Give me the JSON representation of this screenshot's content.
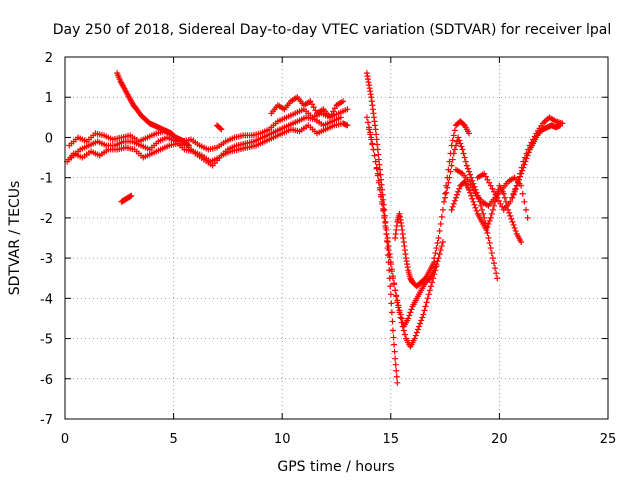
{
  "chart_data": {
    "type": "scatter",
    "title": "Day 250 of 2018, Sidereal Day-to-day VTEC variation (SDTVAR) for receiver lpal",
    "xlabel": "GPS time / hours",
    "ylabel": "SDTVAR / TECUs",
    "xlim": [
      0,
      25
    ],
    "ylim": [
      -7,
      2
    ],
    "xticks": [
      "0",
      "5",
      "10",
      "15",
      "20",
      "25"
    ],
    "yticks": [
      "2",
      "1",
      "0",
      "-1",
      "-2",
      "-3",
      "-4",
      "-5",
      "-6",
      "-7"
    ],
    "grid": true,
    "marker": "+",
    "color": "#ff0000",
    "series": [
      {
        "x": [
          0.1,
          0.4,
          0.8,
          1.2,
          1.6,
          2.0,
          2.4,
          2.8,
          3.2,
          3.6,
          4.0,
          4.4,
          4.8,
          5.2,
          5.6,
          6.0,
          6.4,
          6.8,
          7.2,
          7.6,
          8.0,
          8.4,
          8.8,
          9.2,
          9.6,
          10.0,
          10.4,
          10.8,
          11.2,
          11.6,
          12.0,
          12.4,
          12.8,
          13.0
        ],
        "y": [
          -0.6,
          -0.4,
          -0.5,
          -0.35,
          -0.45,
          -0.3,
          -0.3,
          -0.25,
          -0.3,
          -0.5,
          -0.4,
          -0.3,
          -0.2,
          -0.15,
          -0.2,
          -0.4,
          -0.55,
          -0.7,
          -0.45,
          -0.35,
          -0.3,
          -0.25,
          -0.2,
          -0.1,
          0.0,
          0.1,
          0.2,
          0.15,
          0.3,
          0.1,
          0.2,
          0.3,
          0.35,
          0.3
        ]
      },
      {
        "x": [
          0.2,
          0.6,
          1.0,
          1.4,
          1.8,
          2.2,
          2.6,
          3.0,
          3.4,
          3.8,
          4.2,
          4.6,
          5.0,
          5.4,
          5.8,
          6.2,
          6.6,
          7.0,
          7.4,
          7.8,
          8.2,
          8.6,
          9.0,
          9.4,
          9.8,
          10.2,
          10.6,
          11.0,
          11.4,
          11.8,
          12.2,
          12.6,
          13.0
        ],
        "y": [
          -0.2,
          0.0,
          -0.1,
          0.1,
          0.05,
          -0.05,
          0.0,
          0.05,
          -0.1,
          0.0,
          0.1,
          0.15,
          0.0,
          -0.1,
          -0.05,
          -0.2,
          -0.3,
          -0.25,
          -0.1,
          0.0,
          0.05,
          0.05,
          0.1,
          0.2,
          0.4,
          0.5,
          0.6,
          0.7,
          0.5,
          0.6,
          0.5,
          0.6,
          0.7
        ]
      },
      {
        "x": [
          0.3,
          0.7,
          1.1,
          1.5,
          1.9,
          2.3,
          2.7,
          3.1,
          3.5,
          3.9,
          4.3,
          4.7,
          5.1,
          5.5,
          5.9,
          6.3,
          6.7,
          7.1,
          7.5,
          7.9,
          8.3,
          8.7,
          9.1,
          9.5,
          9.9,
          10.3,
          10.7,
          11.1,
          11.5,
          11.9,
          12.3,
          12.7
        ],
        "y": [
          -0.5,
          -0.3,
          -0.2,
          -0.1,
          -0.2,
          -0.2,
          -0.1,
          -0.1,
          -0.2,
          -0.3,
          -0.1,
          0.0,
          -0.1,
          -0.3,
          -0.35,
          -0.45,
          -0.6,
          -0.5,
          -0.3,
          -0.2,
          -0.15,
          -0.1,
          0.0,
          0.1,
          0.2,
          0.3,
          0.4,
          0.5,
          0.45,
          0.3,
          0.4,
          0.5
        ]
      },
      {
        "x": [
          2.4,
          2.55,
          2.7,
          2.85,
          3.0,
          3.15,
          3.3,
          3.5,
          3.7,
          3.9,
          4.1,
          4.3,
          4.5,
          4.7,
          4.9,
          5.1,
          5.3,
          5.5,
          5.7
        ],
        "y": [
          1.6,
          1.4,
          1.25,
          1.1,
          0.95,
          0.8,
          0.7,
          0.55,
          0.45,
          0.35,
          0.3,
          0.25,
          0.2,
          0.15,
          0.1,
          0.0,
          -0.05,
          -0.1,
          -0.2
        ]
      },
      {
        "x": [
          2.6,
          2.75,
          2.9,
          3.05
        ],
        "y": [
          -1.6,
          -1.55,
          -1.5,
          -1.45
        ]
      },
      {
        "x": [
          7.0,
          7.2
        ],
        "y": [
          0.3,
          0.2
        ]
      },
      {
        "x": [
          9.5,
          9.8,
          10.1,
          10.4,
          10.7,
          11.0,
          11.3,
          11.6,
          11.9,
          12.2,
          12.5,
          12.8
        ],
        "y": [
          0.6,
          0.8,
          0.7,
          0.9,
          1.0,
          0.8,
          0.9,
          0.6,
          0.7,
          0.5,
          0.8,
          0.9
        ]
      },
      {
        "x": [
          13.9,
          14.0,
          14.1,
          14.2,
          14.3,
          14.4,
          14.5,
          14.6,
          14.7,
          14.8,
          14.9,
          15.0,
          15.1,
          15.2,
          15.3
        ],
        "y": [
          1.6,
          1.3,
          1.0,
          0.6,
          0.2,
          -0.3,
          -0.8,
          -1.3,
          -1.8,
          -2.4,
          -3.1,
          -3.9,
          -4.8,
          -5.5,
          -6.1
        ]
      },
      {
        "x": [
          13.9,
          14.1,
          14.3,
          14.5,
          14.7,
          14.9,
          15.1,
          15.3,
          15.5,
          15.7,
          15.9,
          16.1,
          16.3,
          16.5,
          16.7,
          16.9,
          17.1
        ],
        "y": [
          0.5,
          0.0,
          -0.6,
          -1.3,
          -2.0,
          -2.8,
          -3.5,
          -4.1,
          -4.6,
          -5.0,
          -5.2,
          -5.0,
          -4.7,
          -4.4,
          -4.0,
          -3.6,
          -3.2
        ]
      },
      {
        "x": [
          14.0,
          14.2,
          14.4,
          14.6,
          14.8,
          15.0,
          15.2,
          15.4,
          15.6,
          15.8,
          16.0,
          16.2,
          16.4,
          16.6,
          16.8,
          17.0,
          17.2,
          17.4
        ],
        "y": [
          0.2,
          -0.3,
          -0.9,
          -1.6,
          -2.3,
          -3.1,
          -3.8,
          -4.3,
          -4.7,
          -4.5,
          -4.2,
          -4.0,
          -3.8,
          -3.6,
          -3.5,
          -3.3,
          -3.0,
          -2.6
        ]
      },
      {
        "x": [
          15.2,
          15.3,
          15.4,
          15.5,
          15.6,
          15.7,
          15.8,
          15.9,
          16.0,
          16.2,
          16.4,
          16.6,
          16.8,
          17.0
        ],
        "y": [
          -2.5,
          -2.1,
          -1.9,
          -2.2,
          -2.6,
          -3.0,
          -3.3,
          -3.5,
          -3.6,
          -3.7,
          -3.6,
          -3.5,
          -3.3,
          -3.1
        ]
      },
      {
        "x": [
          17.0,
          17.2,
          17.4,
          17.6,
          17.8,
          18.0,
          18.2,
          18.4,
          18.6
        ],
        "y": [
          -3.0,
          -2.5,
          -1.8,
          -1.0,
          -0.2,
          0.3,
          0.4,
          0.3,
          0.1
        ]
      },
      {
        "x": [
          17.5,
          17.7,
          17.9,
          18.1,
          18.3,
          18.5,
          18.7,
          18.9,
          19.1,
          19.3,
          19.5,
          19.7,
          19.9
        ],
        "y": [
          -1.5,
          -1.0,
          -0.4,
          0.0,
          -0.3,
          -0.7,
          -1.0,
          -1.3,
          -1.6,
          -2.0,
          -2.5,
          -3.0,
          -3.5
        ]
      },
      {
        "x": [
          17.8,
          18.0,
          18.2,
          18.4,
          18.6,
          18.8,
          19.0,
          19.2,
          19.4,
          19.6,
          19.8,
          20.0,
          20.2,
          20.4,
          20.6,
          20.8,
          21.0
        ],
        "y": [
          -1.8,
          -1.5,
          -1.2,
          -1.1,
          -1.3,
          -1.6,
          -1.9,
          -2.1,
          -2.3,
          -2.0,
          -1.6,
          -1.2,
          -1.4,
          -1.8,
          -2.1,
          -2.4,
          -2.6
        ]
      },
      {
        "x": [
          18.0,
          18.3,
          18.6,
          18.9,
          19.2,
          19.5,
          19.8,
          20.1,
          20.4,
          20.7,
          21.0,
          21.3
        ],
        "y": [
          -0.8,
          -0.9,
          -1.1,
          -1.4,
          -1.6,
          -1.7,
          -1.5,
          -1.3,
          -1.1,
          -1.0,
          -1.2,
          -2.0
        ]
      },
      {
        "x": [
          19.0,
          19.3,
          19.6,
          19.9,
          20.2,
          20.5,
          20.8,
          21.1,
          21.4,
          21.7,
          22.0,
          22.3,
          22.6,
          22.9
        ],
        "y": [
          -1.0,
          -0.9,
          -1.2,
          -1.5,
          -1.8,
          -1.6,
          -1.2,
          -0.6,
          -0.2,
          0.1,
          0.35,
          0.5,
          0.4,
          0.35
        ]
      },
      {
        "x": [
          20.6,
          20.8,
          21.0,
          21.2,
          21.4,
          21.6,
          21.8,
          22.0,
          22.2,
          22.4,
          22.6,
          22.8
        ],
        "y": [
          -1.5,
          -1.2,
          -0.9,
          -0.6,
          -0.3,
          -0.1,
          0.1,
          0.2,
          0.25,
          0.3,
          0.25,
          0.3
        ]
      }
    ]
  }
}
